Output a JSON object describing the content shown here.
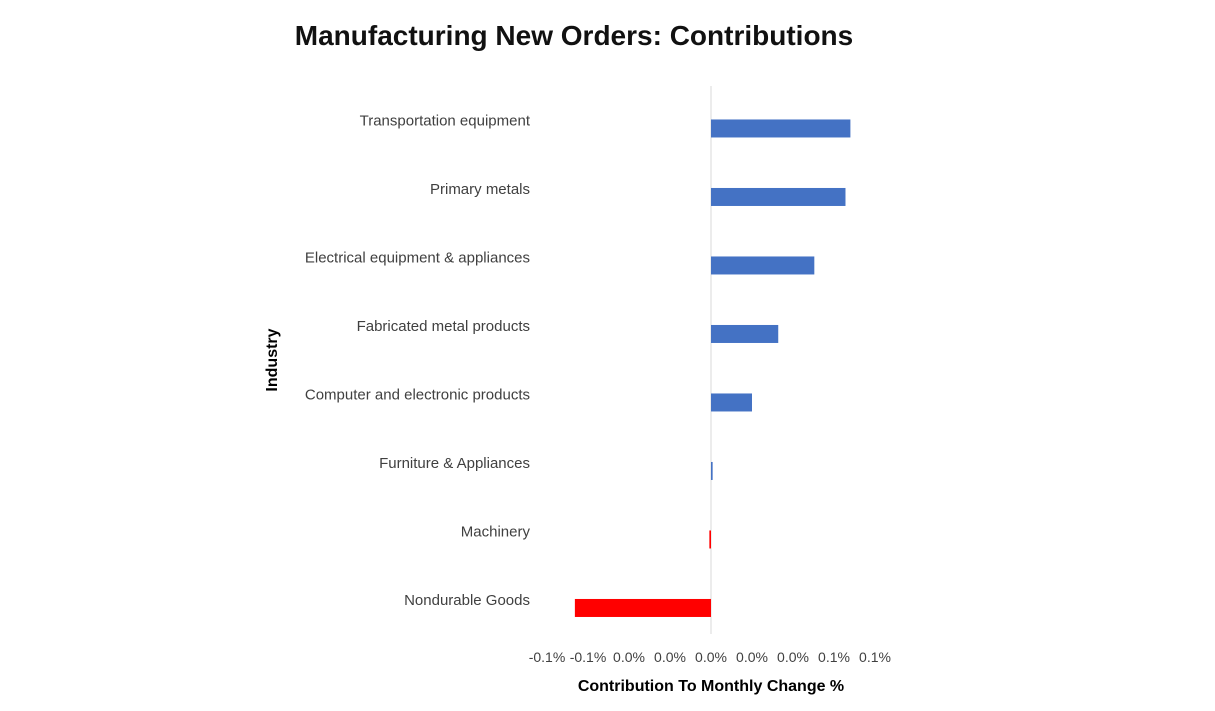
{
  "chart_data": {
    "type": "bar",
    "orientation": "horizontal",
    "title": "Manufacturing New Orders: Contributions",
    "xlabel": "Contribution To Monthly Change %",
    "ylabel": "Industry",
    "categories": [
      "Transportation equipment",
      "Primary metals",
      "Electrical equipment & appliances",
      "Fabricated metal products",
      "Computer and electronic products",
      "Furniture & Appliances",
      "Machinery",
      "Nondurable Goods"
    ],
    "values": [
      0.085,
      0.082,
      0.063,
      0.041,
      0.025,
      0.001,
      -0.001,
      -0.083
    ],
    "xlim": [
      -0.1,
      0.1
    ],
    "x_ticks": [
      -0.1,
      -0.075,
      -0.05,
      -0.025,
      0.0,
      0.025,
      0.05,
      0.075,
      0.1
    ],
    "x_tick_labels": [
      "-0.1%",
      "-0.1%",
      "0.0%",
      "0.0%",
      "0.0%",
      "0.0%",
      "0.0%",
      "0.1%",
      "0.1%"
    ],
    "colors": {
      "positive": "#4472C4",
      "negative": "#FF0000",
      "zero_line": "#D9D9D9"
    },
    "grid": false,
    "legend": "none"
  }
}
